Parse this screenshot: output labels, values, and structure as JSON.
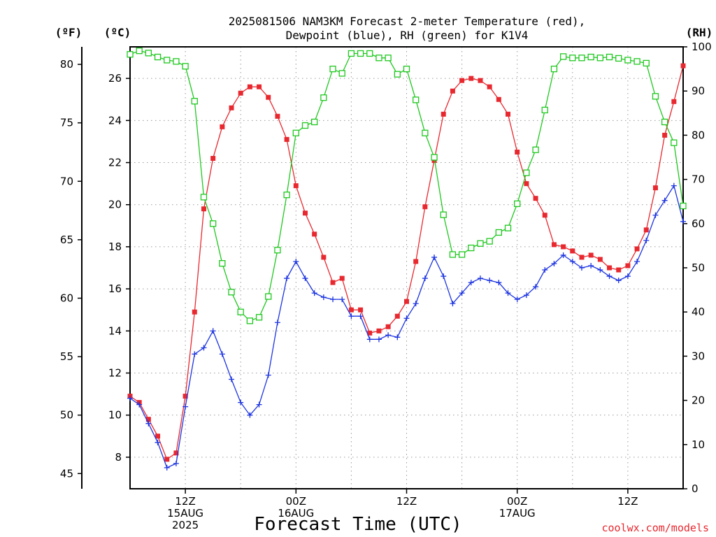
{
  "chart_data": {
    "type": "line",
    "title": [
      "2025081506 NAM3KM Forecast 2-meter Temperature (red),",
      "Dewpoint (blue), RH (green) for K1V4"
    ],
    "xlabel": "Forecast Time (UTC)",
    "left_outer_unit": "(ºF)",
    "left_inner_unit": "(ºC)",
    "right_unit": "(RH)",
    "credit": "coolwx.com/models",
    "x_start_hour": 6,
    "x_end_hour": 66,
    "x_tick_labels": [
      {
        "hour": 12,
        "lines": [
          "12Z",
          "15AUG",
          "2025"
        ]
      },
      {
        "hour": 24,
        "lines": [
          "00Z",
          "16AUG"
        ]
      },
      {
        "hour": 36,
        "lines": [
          "12Z"
        ]
      },
      {
        "hour": 48,
        "lines": [
          "00Z",
          "17AUG"
        ]
      },
      {
        "hour": 60,
        "lines": [
          "12Z"
        ]
      }
    ],
    "x_dotted_grid_hours": [
      12,
      18,
      24,
      30,
      36,
      42,
      48,
      54,
      60
    ],
    "celsius_axis": {
      "range": [
        6.5,
        27.5
      ],
      "ticks": [
        8,
        10,
        12,
        14,
        16,
        18,
        20,
        22,
        24,
        26
      ]
    },
    "fahrenheit_axis": {
      "ticks": [
        45,
        50,
        55,
        60,
        65,
        70,
        75,
        80
      ]
    },
    "rh_axis": {
      "range": [
        0,
        100
      ],
      "ticks": [
        0,
        10,
        20,
        30,
        40,
        50,
        60,
        70,
        80,
        90,
        100
      ]
    },
    "colors": {
      "temperature": "#e8282f",
      "dewpoint": "#1c34e0",
      "rh": "#1ec81e",
      "credit": "#e8282f",
      "grid": "#9a9a9a"
    },
    "series": [
      {
        "name": "Temperature (red)",
        "unit": "C",
        "marker": "filled-square",
        "values": [
          10.9,
          10.6,
          9.8,
          9.0,
          7.9,
          8.2,
          10.9,
          14.9,
          19.8,
          22.2,
          23.7,
          24.6,
          25.3,
          25.6,
          25.6,
          25.1,
          24.2,
          23.1,
          20.9,
          19.6,
          18.6,
          17.5,
          16.3,
          16.5,
          15.0,
          15.0,
          13.9,
          14.0,
          14.2,
          14.7,
          15.4,
          17.3,
          19.9,
          22.1,
          24.3,
          25.4,
          25.9,
          26.0,
          25.9,
          25.6,
          25.0,
          24.3,
          22.5,
          21.0,
          20.3,
          19.5,
          18.1,
          18.0,
          17.8,
          17.5,
          17.6,
          17.4,
          17.0,
          16.9,
          17.1,
          17.9,
          18.8,
          20.8,
          23.3,
          24.9,
          26.6
        ]
      },
      {
        "name": "Dewpoint (blue)",
        "unit": "C",
        "marker": "plus",
        "values": [
          10.8,
          10.5,
          9.6,
          8.7,
          7.5,
          7.7,
          10.4,
          12.9,
          13.2,
          14.0,
          12.9,
          11.7,
          10.6,
          10.0,
          10.5,
          11.9,
          14.4,
          16.5,
          17.3,
          16.5,
          15.8,
          15.6,
          15.5,
          15.5,
          14.7,
          14.7,
          13.6,
          13.6,
          13.8,
          13.7,
          14.6,
          15.3,
          16.5,
          17.5,
          16.6,
          15.3,
          15.8,
          16.3,
          16.5,
          16.4,
          16.3,
          15.8,
          15.5,
          15.7,
          16.1,
          16.9,
          17.2,
          17.6,
          17.3,
          17.0,
          17.1,
          16.9,
          16.6,
          16.4,
          16.6,
          17.3,
          18.3,
          19.5,
          20.2,
          20.9,
          19.2
        ]
      },
      {
        "name": "RH (green)",
        "unit": "%",
        "marker": "open-square",
        "values": [
          98.3,
          99.1,
          98.6,
          97.7,
          97.0,
          96.7,
          95.6,
          87.7,
          66.0,
          60.0,
          51.0,
          44.5,
          40.0,
          38.0,
          38.8,
          43.5,
          54.0,
          66.5,
          80.5,
          82.2,
          83.0,
          88.5,
          95.0,
          94.0,
          98.5,
          98.5,
          98.5,
          97.5,
          97.5,
          93.8,
          95.0,
          88.0,
          80.5,
          75.0,
          62.0,
          53.0,
          53.0,
          54.5,
          55.5,
          56.0,
          58.0,
          59.0,
          64.5,
          71.5,
          76.7,
          85.7,
          95.0,
          97.8,
          97.5,
          97.5,
          97.7,
          97.5,
          97.7,
          97.4,
          97.0,
          96.7,
          96.3,
          88.8,
          83.0,
          78.3,
          64.0
        ]
      }
    ]
  }
}
